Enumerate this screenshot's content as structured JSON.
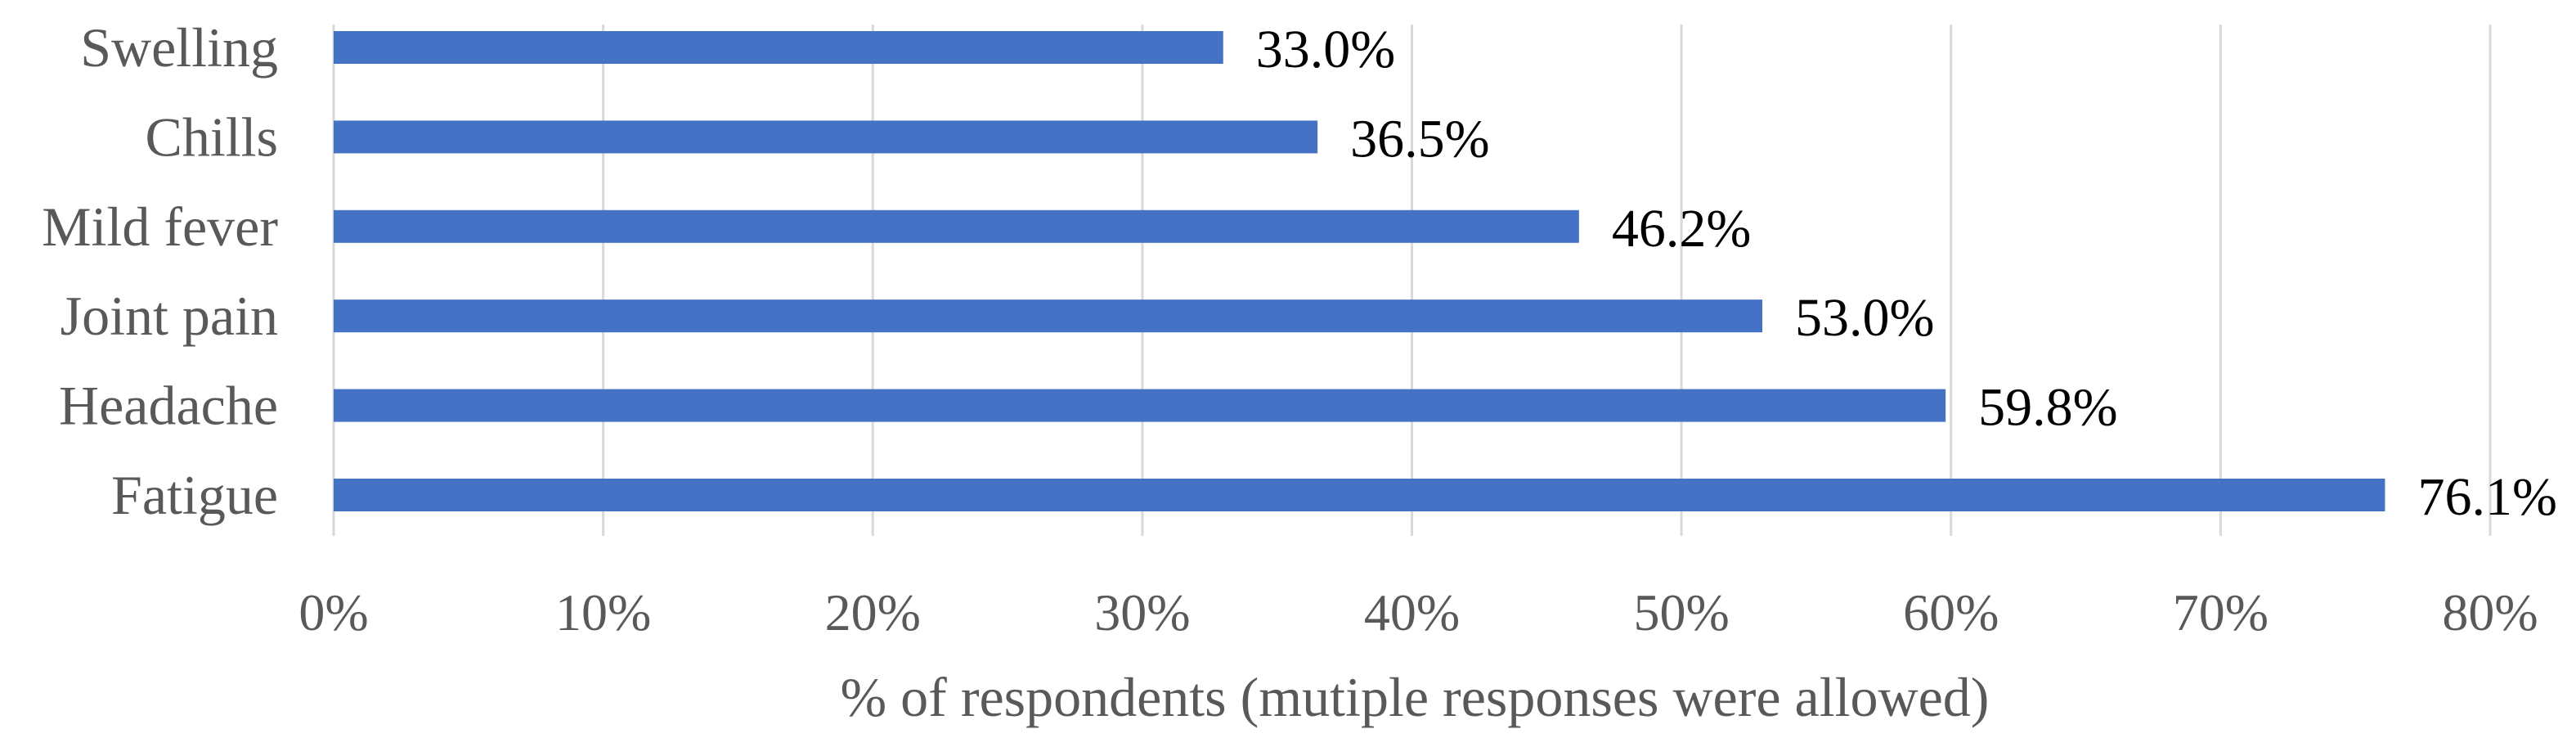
{
  "chart_data": {
    "type": "bar",
    "orientation": "horizontal",
    "categories": [
      "Swelling",
      "Chills",
      "Mild fever",
      "Joint pain",
      "Headache",
      "Fatigue"
    ],
    "values": [
      33.0,
      36.5,
      46.2,
      53.0,
      59.8,
      76.1
    ],
    "data_labels": [
      "33.0%",
      "36.5%",
      "46.2%",
      "53.0%",
      "59.8%",
      "76.1%"
    ],
    "xlim": [
      0,
      80
    ],
    "x_ticks": [
      0,
      10,
      20,
      30,
      40,
      50,
      60,
      70,
      80
    ],
    "x_tick_labels": [
      "0%",
      "10%",
      "20%",
      "30%",
      "40%",
      "50%",
      "60%",
      "70%",
      "80%"
    ],
    "xlabel": "% of respondents (mutiple responses were allowed)",
    "ylabel": "",
    "title": "",
    "grid": "vertical",
    "legend": "none",
    "colors": {
      "bar": "#4472C4",
      "grid": "#D9D9D9",
      "axis_text": "#595959",
      "data_label": "#000000"
    }
  }
}
